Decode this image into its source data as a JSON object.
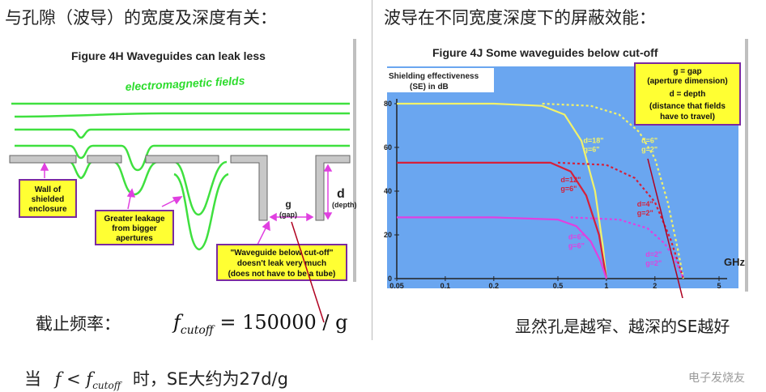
{
  "left": {
    "heading": "与孔隙（波导）的宽度及深度有关：",
    "figure_title": "Figure 4H     Waveguides can leak less",
    "field_label": "electromagnetic fields",
    "callouts": {
      "wall": [
        "Wall of",
        "shielded",
        "enclosure"
      ],
      "leakage": [
        "Greater leakage",
        "from bigger",
        "apertures"
      ],
      "waveguide": [
        "\"Waveguide below cut-off\"",
        "doesn't leak very much",
        "(does not have to be a tube)"
      ]
    },
    "gap_label": "g",
    "gap_sub": "(gap)",
    "depth_label": "d",
    "depth_sub": "(depth)",
    "cutoff_label": "截止频率：",
    "cutoff_formula_lhs": "f",
    "cutoff_formula_sub": "cutoff",
    "cutoff_formula_rhs": "= 150000 / g",
    "condition_prefix": "当",
    "condition_f": "f",
    "condition_lt": " < ",
    "condition_fc": "f",
    "condition_sub": "cutoff",
    "condition_suffix": "时，SE大约为27d/g"
  },
  "right": {
    "heading": "波导在不同宽度深度下的屏蔽效能：",
    "figure_title": "Figure 4J   Some waveguides below cut-off",
    "legend_box": [
      "g = gap",
      "(aperture dimension)",
      "d = depth",
      "(distance that fields",
      "have to travel)"
    ],
    "note": "显然孔是越窄、越深的SE越好",
    "watermark": "电子发烧友"
  },
  "chart_data": {
    "type": "line",
    "xscale": "log",
    "ylabel": "Shielding effectiveness (SE) in dB",
    "xlabel": "GHz",
    "xticks": [
      "0.05",
      "0.1",
      "0.2",
      "0.5",
      "1",
      "2",
      "5"
    ],
    "xtick_values": [
      0.05,
      0.1,
      0.2,
      0.5,
      1,
      2,
      5
    ],
    "yticks": [
      "0",
      "20",
      "40",
      "60",
      "80"
    ],
    "ytick_values": [
      0,
      20,
      40,
      60,
      80
    ],
    "xlim": [
      0.05,
      5
    ],
    "ylim": [
      0,
      80
    ],
    "colors": {
      "yellow": "#f2f26a",
      "red": "#d61f3a",
      "magenta": "#e040e0",
      "background": "#6aa6f0"
    },
    "series": [
      {
        "label": [
          "d=18\"",
          "g=6\""
        ],
        "color": "yellow",
        "dash": false,
        "x": [
          0.05,
          0.2,
          0.4,
          0.55,
          0.7,
          0.85,
          0.95,
          1.0
        ],
        "y": [
          80,
          80,
          79,
          75,
          63,
          40,
          15,
          0
        ]
      },
      {
        "label": [
          "d=6\"",
          "g=2\""
        ],
        "color": "yellow",
        "dash": true,
        "x": [
          0.4,
          0.8,
          1.2,
          1.6,
          2.0,
          2.4,
          2.8,
          3.0
        ],
        "y": [
          80,
          79,
          75,
          67,
          55,
          35,
          12,
          0
        ]
      },
      {
        "label": [
          "d=12\"",
          "g=6\""
        ],
        "color": "red",
        "dash": false,
        "x": [
          0.05,
          0.2,
          0.45,
          0.6,
          0.75,
          0.9,
          1.0
        ],
        "y": [
          53,
          53,
          53,
          49,
          38,
          20,
          0
        ]
      },
      {
        "label": [
          "d=4\"",
          "g=2\""
        ],
        "color": "red",
        "dash": true,
        "x": [
          0.5,
          1.0,
          1.5,
          2.0,
          2.5,
          3.0
        ],
        "y": [
          53,
          52,
          46,
          35,
          18,
          0
        ]
      },
      {
        "label": [
          "d=6\"",
          "g=6\""
        ],
        "color": "magenta",
        "dash": false,
        "x": [
          0.05,
          0.2,
          0.5,
          0.65,
          0.8,
          0.92,
          1.0
        ],
        "y": [
          28,
          28,
          27,
          24,
          17,
          8,
          0
        ]
      },
      {
        "label": [
          "d=2\"",
          "g=2\""
        ],
        "color": "magenta",
        "dash": true,
        "x": [
          0.6,
          1.2,
          1.8,
          2.3,
          2.7,
          3.0
        ],
        "y": [
          28,
          27,
          23,
          16,
          8,
          0
        ]
      }
    ]
  }
}
